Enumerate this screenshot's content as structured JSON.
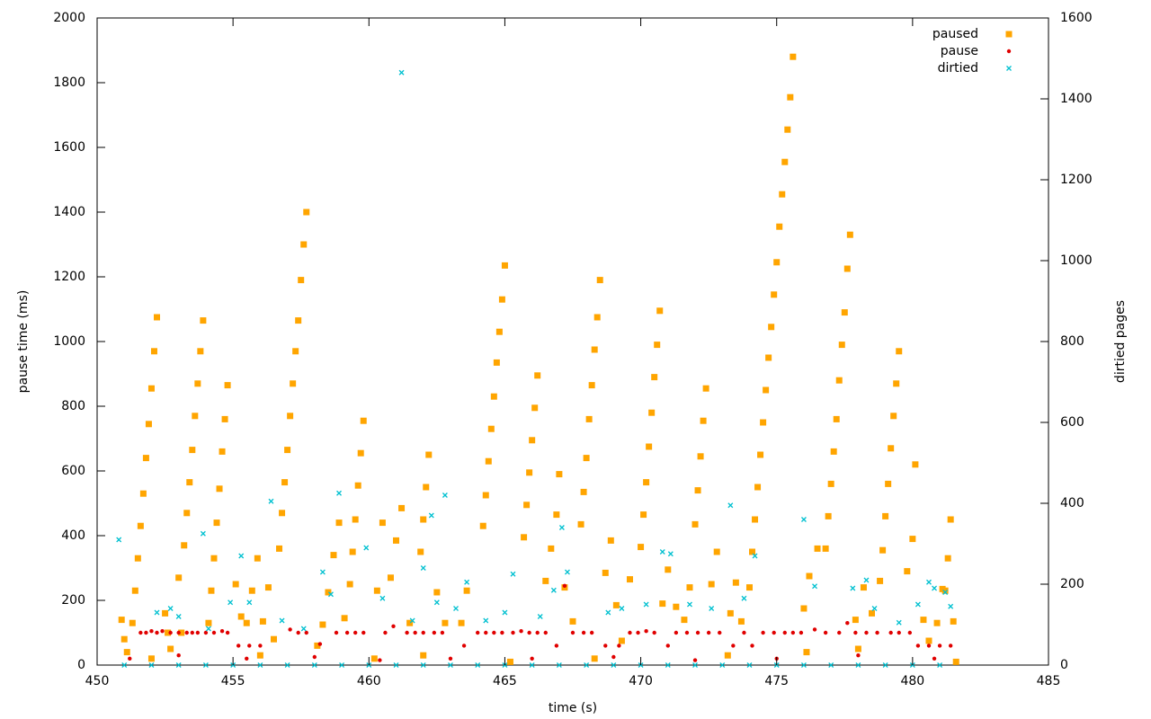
{
  "chart_data": {
    "type": "scatter",
    "xlabel": "time (s)",
    "ylabel": "pause time (ms)",
    "y2label": "dirtied pages",
    "xlim": [
      450,
      485
    ],
    "xticks": [
      450,
      455,
      460,
      465,
      470,
      475,
      480,
      485
    ],
    "ylim": [
      0,
      2000
    ],
    "yticks": [
      0,
      200,
      400,
      600,
      800,
      1000,
      1200,
      1400,
      1600,
      1800,
      2000
    ],
    "y2lim": [
      0,
      1600
    ],
    "y2ticks": [
      0,
      200,
      400,
      600,
      800,
      1000,
      1200,
      1400,
      1600
    ],
    "legend": "top-right",
    "series": [
      {
        "name": "paused",
        "color": "#ffa500",
        "marker": "square",
        "x": [
          451.4,
          451.5,
          451.6,
          451.7,
          451.8,
          451.9,
          452.0,
          452.1,
          452.2,
          453.2,
          453.3,
          453.4,
          453.5,
          453.6,
          453.7,
          453.8,
          453.9,
          454.2,
          454.3,
          454.4,
          454.5,
          454.6,
          454.7,
          454.8,
          456.7,
          456.8,
          456.9,
          457.0,
          457.1,
          457.2,
          457.3,
          457.4,
          457.5,
          457.6,
          457.7,
          459.3,
          459.4,
          459.5,
          459.6,
          459.7,
          459.8,
          461.9,
          462.0,
          462.1,
          462.2,
          464.2,
          464.3,
          464.4,
          464.5,
          464.6,
          464.7,
          464.8,
          464.9,
          465.0,
          465.7,
          465.8,
          465.9,
          466.0,
          466.1,
          466.2,
          467.8,
          467.9,
          468.0,
          468.1,
          468.2,
          468.3,
          468.4,
          468.5,
          470.0,
          470.1,
          470.2,
          470.3,
          470.4,
          470.5,
          470.6,
          470.7,
          472.0,
          472.1,
          472.2,
          472.3,
          472.4,
          474.1,
          474.2,
          474.3,
          474.4,
          474.5,
          474.6,
          474.7,
          474.8,
          474.9,
          475.0,
          475.1,
          475.2,
          475.3,
          475.4,
          475.5,
          475.6,
          476.8,
          476.9,
          477.0,
          477.1,
          477.2,
          477.3,
          477.4,
          477.5,
          477.6,
          477.7,
          478.9,
          479.0,
          479.1,
          479.2,
          479.3,
          479.4,
          479.5,
          481.2,
          481.3,
          481.4,
          450.9,
          451.0,
          451.1,
          451.3,
          452.5,
          452.6,
          452.7,
          453.0,
          453.1,
          454.1,
          455.1,
          455.3,
          455.5,
          455.7,
          455.9,
          456.1,
          456.3,
          456.5,
          458.1,
          458.3,
          458.5,
          458.7,
          458.9,
          459.1,
          460.3,
          460.5,
          460.8,
          461.0,
          461.2,
          461.5,
          462.5,
          462.8,
          463.4,
          463.6,
          466.5,
          466.7,
          466.9,
          467.0,
          467.2,
          467.5,
          468.7,
          468.9,
          469.1,
          469.3,
          469.6,
          470.8,
          471.0,
          471.3,
          471.6,
          471.8,
          472.6,
          472.8,
          473.3,
          473.5,
          473.7,
          474.0,
          476.0,
          476.2,
          476.5,
          477.9,
          478.2,
          478.5,
          478.8,
          479.8,
          480.0,
          480.1,
          480.4,
          480.6,
          480.9,
          481.1,
          481.5,
          452.0,
          456.0,
          460.2,
          462.0,
          465.2,
          468.3,
          473.2,
          476.1,
          478.0,
          481.6
        ],
        "values": [
          230,
          330,
          430,
          530,
          640,
          745,
          855,
          970,
          1075,
          370,
          470,
          565,
          665,
          770,
          870,
          970,
          1065,
          230,
          330,
          440,
          545,
          660,
          760,
          865,
          360,
          470,
          565,
          665,
          770,
          870,
          970,
          1065,
          1190,
          1300,
          1400,
          250,
          350,
          450,
          555,
          655,
          755,
          350,
          450,
          550,
          650,
          430,
          525,
          630,
          730,
          830,
          935,
          1030,
          1130,
          1235,
          395,
          495,
          595,
          695,
          795,
          895,
          435,
          535,
          640,
          760,
          865,
          975,
          1075,
          1190,
          365,
          465,
          565,
          675,
          780,
          890,
          990,
          1095,
          435,
          540,
          645,
          755,
          855,
          350,
          450,
          550,
          650,
          750,
          850,
          950,
          1045,
          1145,
          1245,
          1355,
          1455,
          1555,
          1655,
          1755,
          1880,
          360,
          460,
          560,
          660,
          760,
          880,
          990,
          1090,
          1225,
          1330,
          355,
          460,
          560,
          670,
          770,
          870,
          970,
          230,
          330,
          450,
          140,
          80,
          40,
          130,
          160,
          100,
          50,
          270,
          100,
          130,
          250,
          150,
          130,
          230,
          330,
          135,
          240,
          80,
          60,
          125,
          225,
          340,
          440,
          145,
          230,
          440,
          270,
          385,
          485,
          130,
          225,
          130,
          130,
          230,
          260,
          360,
          465,
          590,
          240,
          135,
          285,
          385,
          185,
          75,
          265,
          190,
          295,
          180,
          140,
          240,
          250,
          350,
          160,
          255,
          135,
          240,
          175,
          275,
          360,
          140,
          240,
          160,
          260,
          290,
          390,
          620,
          140,
          75,
          130,
          235,
          135,
          20,
          30,
          20,
          30,
          10,
          20,
          30,
          40,
          50,
          10
        ]
      },
      {
        "name": "pause",
        "color": "#e00000",
        "marker": "circle",
        "x": [
          451.6,
          451.8,
          452.0,
          452.2,
          452.4,
          452.7,
          453.0,
          453.3,
          453.5,
          453.7,
          454.0,
          454.3,
          454.6,
          454.8,
          455.2,
          455.6,
          456.0,
          457.1,
          457.4,
          457.7,
          458.2,
          458.8,
          459.2,
          459.5,
          459.8,
          460.6,
          460.9,
          461.4,
          461.7,
          462.0,
          462.4,
          462.7,
          463.5,
          464.0,
          464.3,
          464.6,
          464.9,
          465.3,
          465.6,
          465.9,
          466.2,
          466.5,
          466.9,
          467.2,
          467.5,
          467.9,
          468.2,
          468.7,
          469.2,
          469.6,
          469.9,
          470.2,
          470.5,
          471.0,
          471.3,
          471.7,
          472.1,
          472.5,
          472.9,
          473.4,
          473.8,
          474.1,
          474.5,
          474.9,
          475.3,
          475.6,
          475.9,
          476.4,
          476.8,
          477.3,
          477.6,
          477.9,
          478.3,
          478.7,
          479.2,
          479.5,
          479.9,
          480.2,
          480.6,
          481.0,
          481.4,
          451.2,
          453.0,
          455.5,
          458.0,
          460.4,
          463.0,
          466.0,
          469.0,
          472.0,
          475.0,
          478.0,
          480.8
        ],
        "values": [
          100,
          100,
          105,
          100,
          105,
          100,
          100,
          100,
          100,
          100,
          100,
          100,
          105,
          100,
          60,
          60,
          60,
          110,
          100,
          100,
          65,
          100,
          100,
          100,
          100,
          100,
          120,
          100,
          100,
          100,
          100,
          100,
          60,
          100,
          100,
          100,
          100,
          100,
          105,
          100,
          100,
          100,
          60,
          245,
          100,
          100,
          100,
          60,
          60,
          100,
          100,
          105,
          100,
          60,
          100,
          100,
          100,
          100,
          100,
          60,
          100,
          60,
          100,
          100,
          100,
          100,
          100,
          110,
          100,
          100,
          130,
          100,
          100,
          100,
          100,
          100,
          100,
          60,
          60,
          60,
          60,
          20,
          30,
          20,
          25,
          15,
          20,
          20,
          25,
          15,
          20,
          30,
          20
        ]
      },
      {
        "name": "dirtied",
        "color": "#00c0d0",
        "marker": "cross",
        "axis": "y2",
        "x": [
          450.8,
          452.2,
          452.7,
          453.0,
          453.9,
          454.1,
          454.9,
          455.3,
          455.6,
          456.4,
          456.8,
          457.6,
          458.3,
          458.6,
          458.9,
          459.9,
          460.5,
          461.2,
          461.6,
          462.0,
          462.3,
          462.5,
          462.8,
          463.2,
          463.6,
          464.3,
          465.0,
          465.3,
          466.3,
          466.8,
          467.1,
          467.3,
          468.8,
          469.3,
          470.2,
          470.8,
          471.1,
          471.8,
          472.6,
          473.3,
          473.8,
          474.2,
          476.0,
          476.4,
          477.8,
          478.3,
          478.6,
          479.5,
          480.2,
          480.6,
          480.8,
          481.2,
          481.4,
          451,
          452,
          453,
          454,
          455,
          456,
          457,
          458,
          459,
          460,
          461,
          462,
          463,
          464,
          465,
          466,
          467,
          468,
          469,
          470,
          471,
          472,
          473,
          474,
          475,
          476,
          477,
          478,
          479,
          480,
          481
        ],
        "values": [
          310,
          130,
          140,
          120,
          325,
          90,
          155,
          270,
          155,
          405,
          110,
          90,
          230,
          175,
          425,
          290,
          165,
          1465,
          110,
          240,
          370,
          155,
          420,
          140,
          205,
          110,
          130,
          225,
          120,
          185,
          340,
          230,
          130,
          140,
          150,
          280,
          275,
          150,
          140,
          395,
          165,
          270,
          360,
          195,
          190,
          210,
          140,
          105,
          150,
          205,
          190,
          180,
          145,
          0,
          0,
          0,
          0,
          0,
          0,
          0,
          0,
          0,
          0,
          0,
          0,
          0,
          0,
          0,
          0,
          0,
          0,
          0,
          0,
          0,
          0,
          0,
          0,
          0,
          0,
          0,
          0,
          0,
          0,
          0
        ]
      }
    ]
  }
}
